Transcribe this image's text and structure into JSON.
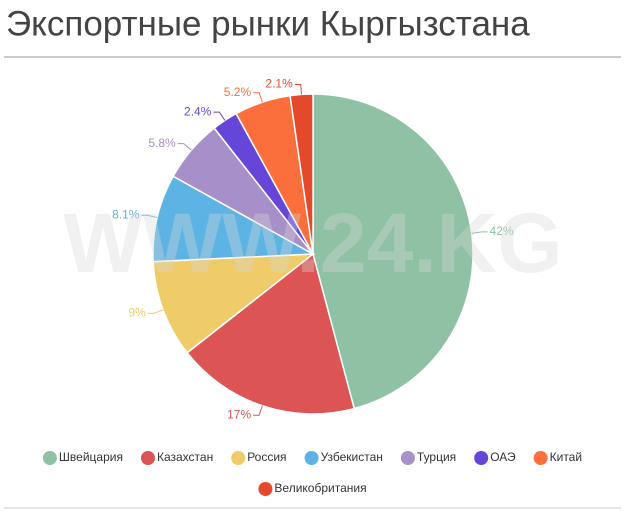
{
  "chart_data": {
    "type": "pie",
    "title": "Экспортные рынки Кыргызстана",
    "watermark": "WWW.24.KG",
    "categories": [
      "Швейцария",
      "Казахстан",
      "Россия",
      "Узбекистан",
      "Турция",
      "ОАЭ",
      "Китай",
      "Великобритания"
    ],
    "values": [
      42,
      17,
      9,
      8.1,
      5.8,
      2.4,
      5.2,
      2.1
    ],
    "value_labels": [
      "42%",
      "17%",
      "9%",
      "8.1%",
      "5.8%",
      "2.4%",
      "5.2%",
      "2.1%"
    ],
    "colors": [
      "#8fc1a5",
      "#dd5455",
      "#f0cb69",
      "#5db3e4",
      "#a78fc9",
      "#6646d9",
      "#fa6f3c",
      "#e5492c"
    ],
    "legend": "bottom"
  }
}
